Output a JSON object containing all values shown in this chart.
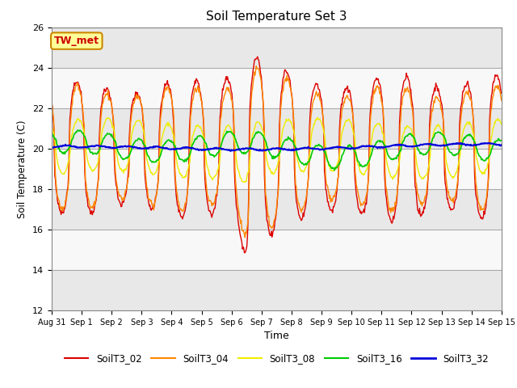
{
  "title": "Soil Temperature Set 3",
  "xlabel": "Time",
  "ylabel": "Soil Temperature (C)",
  "ylim": [
    12,
    26
  ],
  "yticks": [
    12,
    14,
    16,
    18,
    20,
    22,
    24,
    26
  ],
  "annotation": "TW_met",
  "fig_bg": "#ffffff",
  "plot_bg": "#ffffff",
  "grid_color": "#cccccc",
  "colors": {
    "SoilT3_02": "#dd0000",
    "SoilT3_04": "#ff8800",
    "SoilT3_08": "#eeee00",
    "SoilT3_16": "#00cc00",
    "SoilT3_32": "#0000dd"
  },
  "lwidths": {
    "SoilT3_02": 1.0,
    "SoilT3_04": 1.0,
    "SoilT3_08": 1.0,
    "SoilT3_16": 1.2,
    "SoilT3_32": 1.5
  },
  "xtick_labels": [
    "Aug 31",
    "Sep 1",
    "Sep 2",
    "Sep 3",
    "Sep 4",
    "Sep 5",
    "Sep 6",
    "Sep 7",
    "Sep 8",
    "Sep 9",
    "Sep 10",
    "Sep 11",
    "Sep 12",
    "Sep 13",
    "Sep 14",
    "Sep 15"
  ],
  "n_days": 15,
  "pts_per_day": 48,
  "base_temp": 20.0
}
